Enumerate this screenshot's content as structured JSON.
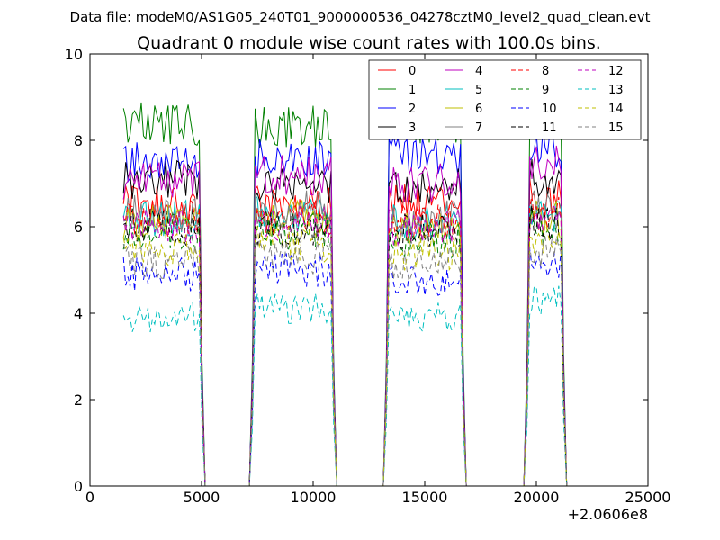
{
  "figure": {
    "suptitle": "Data file: modeM0/AS1G05_240T01_9000000536_04278cztM0_level2_quad_clean.evt",
    "title": "Quadrant 0 module wise count rates with 100.0s bins.",
    "x_offset_label": "+2.0606e8"
  },
  "chart_data": {
    "type": "line",
    "title": "Quadrant 0 module wise count rates with 100.0s bins.",
    "xlabel": "",
    "ylabel": "",
    "xlim": [
      0,
      25000
    ],
    "ylim": [
      0,
      10
    ],
    "x_ticks": [
      0,
      5000,
      10000,
      15000,
      20000,
      25000
    ],
    "y_ticks": [
      0,
      2,
      4,
      6,
      8,
      10
    ],
    "x_offset": 206060000,
    "bin_width_s": 100,
    "grid": false,
    "legend_position": "top-right",
    "legend_columns": 4,
    "segments": [
      {
        "x_start": 1500,
        "x_end": 4900
      },
      {
        "x_start": 7400,
        "x_end": 10800
      },
      {
        "x_start": 13400,
        "x_end": 16600
      },
      {
        "x_start": 19700,
        "x_end": 21100
      }
    ],
    "gap_ranges": [
      [
        5300,
        7100
      ],
      [
        11100,
        13200
      ],
      [
        17000,
        19500
      ]
    ],
    "series": [
      {
        "name": "0",
        "color": "#ff0000",
        "style": "solid",
        "mean_rate": 6.5,
        "segment_levels": [
          6.5,
          6.5,
          6.6,
          6.7
        ]
      },
      {
        "name": "1",
        "color": "#008000",
        "style": "solid",
        "mean_rate": 8.3,
        "segment_levels": [
          8.4,
          8.3,
          8.4,
          8.6
        ]
      },
      {
        "name": "2",
        "color": "#0000ff",
        "style": "solid",
        "mean_rate": 7.6,
        "segment_levels": [
          7.5,
          7.6,
          7.6,
          7.8
        ]
      },
      {
        "name": "3",
        "color": "#000000",
        "style": "solid",
        "mean_rate": 7.0,
        "segment_levels": [
          7.1,
          7.0,
          6.9,
          7.1
        ]
      },
      {
        "name": "4",
        "color": "#bf00bf",
        "style": "solid",
        "mean_rate": 7.1,
        "segment_levels": [
          7.1,
          7.2,
          7.0,
          7.4
        ]
      },
      {
        "name": "5",
        "color": "#00bfbf",
        "style": "solid",
        "mean_rate": 6.2,
        "segment_levels": [
          6.2,
          6.3,
          6.1,
          6.3
        ]
      },
      {
        "name": "6",
        "color": "#bfbf00",
        "style": "solid",
        "mean_rate": 6.1,
        "segment_levels": [
          6.1,
          6.2,
          6.0,
          6.2
        ]
      },
      {
        "name": "7",
        "color": "#808080",
        "style": "solid",
        "mean_rate": 6.3,
        "segment_levels": [
          6.3,
          6.4,
          6.2,
          6.4
        ]
      },
      {
        "name": "8",
        "color": "#ff0000",
        "style": "dashed",
        "mean_rate": 6.2,
        "segment_levels": [
          6.2,
          6.2,
          6.1,
          6.3
        ]
      },
      {
        "name": "9",
        "color": "#008000",
        "style": "dashed",
        "mean_rate": 5.8,
        "segment_levels": [
          5.9,
          5.9,
          5.7,
          6.0
        ]
      },
      {
        "name": "10",
        "color": "#0000ff",
        "style": "dashed",
        "mean_rate": 4.9,
        "segment_levels": [
          4.9,
          5.0,
          4.8,
          5.1
        ]
      },
      {
        "name": "11",
        "color": "#000000",
        "style": "dashed",
        "mean_rate": 6.0,
        "segment_levels": [
          6.0,
          6.0,
          5.9,
          6.1
        ]
      },
      {
        "name": "12",
        "color": "#bf00bf",
        "style": "dashed",
        "mean_rate": 6.1,
        "segment_levels": [
          6.0,
          6.1,
          6.0,
          6.2
        ]
      },
      {
        "name": "13",
        "color": "#00bfbf",
        "style": "dashed",
        "mean_rate": 4.0,
        "segment_levels": [
          3.9,
          4.1,
          3.9,
          4.3
        ]
      },
      {
        "name": "14",
        "color": "#bfbf00",
        "style": "dashed",
        "mean_rate": 5.5,
        "segment_levels": [
          5.5,
          5.6,
          5.4,
          5.8
        ]
      },
      {
        "name": "15",
        "color": "#808080",
        "style": "dashed",
        "mean_rate": 5.2,
        "segment_levels": [
          5.2,
          5.3,
          5.1,
          5.4
        ]
      }
    ]
  }
}
